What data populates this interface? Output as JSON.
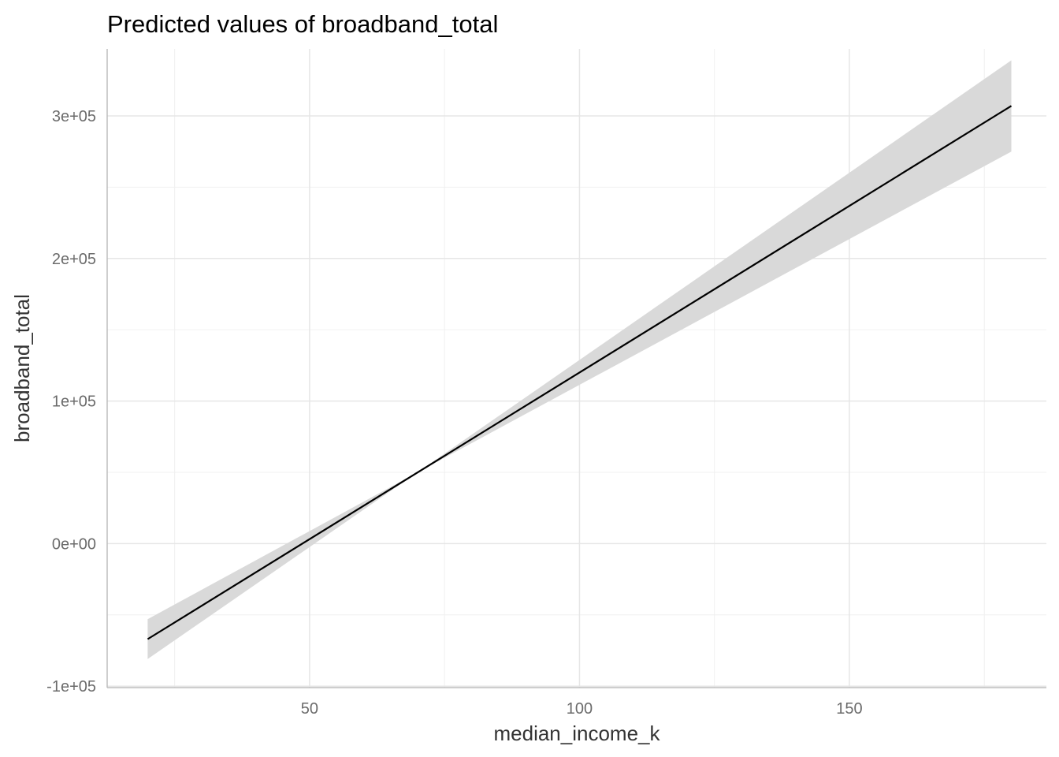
{
  "chart_data": {
    "type": "line",
    "title": "Predicted values of broadband_total",
    "xlabel": "median_income_k",
    "ylabel": "broadband_total",
    "xlim": [
      12.5,
      186.5
    ],
    "ylim": [
      -101000,
      347000
    ],
    "x_major_ticks": [
      50,
      100,
      150
    ],
    "x_minor_ticks": [
      25,
      75,
      125,
      175
    ],
    "y_major_ticks": [
      -100000,
      0,
      100000,
      200000,
      300000
    ],
    "y_minor_ticks": [
      -50000,
      50000,
      150000,
      250000
    ],
    "x_tick_labels": [
      "50",
      "100",
      "150"
    ],
    "y_tick_labels": [
      "-1e+05",
      "0e+00",
      "1e+05",
      "2e+05",
      "3e+05"
    ],
    "grid": true,
    "series": [
      {
        "x": [
          20,
          180
        ],
        "y": [
          -67000,
          307000
        ],
        "ci_lower": [
          -81000,
          275000
        ],
        "ci_upper": [
          -53000,
          339000
        ],
        "ci_pivot_x": 70,
        "ci_pivot_y": 50000,
        "line_color": "#000000",
        "ribbon_color": "#d9d9d9"
      }
    ]
  }
}
